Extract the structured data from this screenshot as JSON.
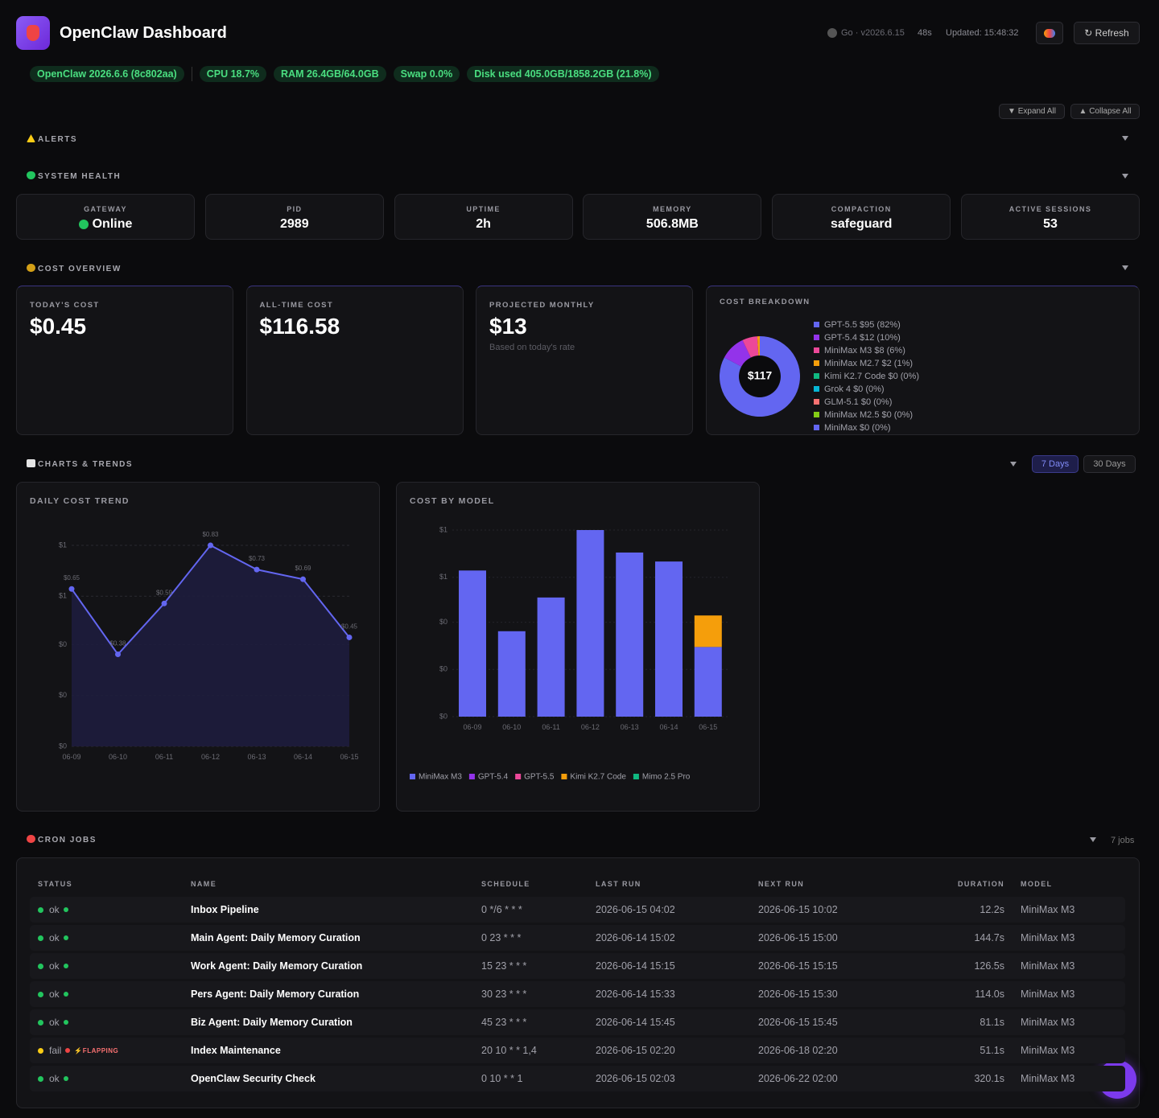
{
  "header": {
    "title": "OpenClaw Dashboard",
    "version": "Go · v2026.6.15",
    "age": "48s",
    "updated": "Updated: 15:48:32",
    "refresh": "↻ Refresh"
  },
  "badges": [
    "OpenClaw 2026.6.6 (8c802aa)",
    "CPU 18.7%",
    "RAM 26.4GB/64.0GB",
    "Swap 0.0%",
    "Disk used 405.0GB/1858.2GB (21.8%)"
  ],
  "controls": {
    "expand": "▼ Expand All",
    "collapse": "▲ Collapse All"
  },
  "alerts": {
    "title": "ALERTS"
  },
  "health": {
    "title": "SYSTEM HEALTH",
    "cards": [
      {
        "label": "GATEWAY",
        "value": "Online"
      },
      {
        "label": "PID",
        "value": "2989"
      },
      {
        "label": "UPTIME",
        "value": "2h"
      },
      {
        "label": "MEMORY",
        "value": "506.8MB"
      },
      {
        "label": "COMPACTION",
        "value": "safeguard"
      },
      {
        "label": "ACTIVE SESSIONS",
        "value": "53"
      }
    ]
  },
  "cost": {
    "title": "COST OVERVIEW",
    "cards": [
      {
        "label": "TODAY'S COST",
        "value": "$0.45"
      },
      {
        "label": "ALL-TIME COST",
        "value": "$116.58"
      },
      {
        "label": "PROJECTED MONTHLY",
        "value": "$13",
        "note": "Based on today's rate"
      }
    ]
  },
  "trends": {
    "title": "CHARTS & TRENDS",
    "tabs": [
      "7 Days",
      "30 Days"
    ]
  },
  "chart_data": [
    {
      "type": "pie",
      "title": "COST BREAKDOWN",
      "center_label": "$117",
      "categories": [
        "GPT-5.5 $95 (82%)",
        "GPT-5.4 $12 (10%)",
        "MiniMax M3 $8 (6%)",
        "MiniMax M2.7 $2 (1%)",
        "Kimi K2.7 Code $0 (0%)",
        "Grok 4 $0 (0%)",
        "GLM-5.1 $0 (0%)",
        "MiniMax M2.5 $0 (0%)",
        "MiniMax $0 (0%)"
      ],
      "values": [
        82,
        10,
        6,
        1,
        0,
        0,
        0,
        0,
        0
      ],
      "colors": [
        "#6366f1",
        "#9333ea",
        "#ec4899",
        "#f59e0b",
        "#10b981",
        "#06b6d4",
        "#f87171",
        "#84cc16",
        "#6366f1"
      ]
    },
    {
      "type": "line",
      "title": "DAILY COST TREND",
      "categories": [
        "06-09",
        "06-10",
        "06-11",
        "06-12",
        "06-13",
        "06-14",
        "06-15"
      ],
      "values": [
        0.65,
        0.38,
        0.59,
        0.83,
        0.73,
        0.69,
        0.45
      ],
      "value_labels": [
        "$0.65",
        "$0.38",
        "$0.59",
        "$0.83",
        "$0.73",
        "$0.69",
        "$0.45"
      ],
      "color": "#6366f1",
      "ylim": [
        0,
        0.83
      ],
      "yticks": [
        {
          "value": 0,
          "label": "$0"
        },
        {
          "value": 0.21,
          "label": "$0"
        },
        {
          "value": 0.42,
          "label": "$0"
        },
        {
          "value": 0.62,
          "label": "$1"
        },
        {
          "value": 0.83,
          "label": "$1"
        }
      ],
      "grid": true
    },
    {
      "type": "bar",
      "stacked": true,
      "title": "COST BY MODEL",
      "categories": [
        "06-09",
        "06-10",
        "06-11",
        "06-12",
        "06-13",
        "06-14",
        "06-15"
      ],
      "series": [
        {
          "name": "MiniMax M3",
          "color": "#6366f1",
          "values": [
            0.65,
            0.38,
            0.53,
            0.83,
            0.73,
            0.69,
            0.31
          ]
        },
        {
          "name": "GPT-5.4",
          "color": "#9333ea",
          "values": [
            0,
            0,
            0,
            0,
            0,
            0,
            0
          ]
        },
        {
          "name": "GPT-5.5",
          "color": "#ec4899",
          "values": [
            0,
            0,
            0,
            0,
            0,
            0,
            0
          ]
        },
        {
          "name": "Kimi K2.7 Code",
          "color": "#f59e0b",
          "values": [
            0,
            0,
            0,
            0,
            0,
            0,
            0.14
          ]
        },
        {
          "name": "Mimo 2.5 Pro",
          "color": "#10b981",
          "values": [
            0,
            0,
            0,
            0,
            0,
            0,
            0
          ]
        }
      ],
      "ylim": [
        0,
        0.83
      ],
      "yticks": [
        {
          "value": 0,
          "label": "$0"
        },
        {
          "value": 0.21,
          "label": "$0"
        },
        {
          "value": 0.42,
          "label": "$0"
        },
        {
          "value": 0.62,
          "label": "$1"
        },
        {
          "value": 0.83,
          "label": "$1"
        }
      ],
      "grid": true
    }
  ],
  "cron": {
    "title": "CRON JOBS",
    "count": "7 jobs",
    "columns": [
      "STATUS",
      "NAME",
      "SCHEDULE",
      "LAST RUN",
      "NEXT RUN",
      "DURATION",
      "MODEL"
    ],
    "rows": [
      {
        "status": "ok",
        "name": "Inbox Pipeline",
        "schedule": "0 */6 * * *",
        "last_run": "2026-06-15 04:02",
        "next_run": "2026-06-15 10:02",
        "duration": "12.2s",
        "model": "MiniMax M3"
      },
      {
        "status": "ok",
        "name": "Main Agent: Daily Memory Curation",
        "schedule": "0 23 * * *",
        "last_run": "2026-06-14 15:02",
        "next_run": "2026-06-15 15:00",
        "duration": "144.7s",
        "model": "MiniMax M3"
      },
      {
        "status": "ok",
        "name": "Work Agent: Daily Memory Curation",
        "schedule": "15 23 * * *",
        "last_run": "2026-06-14 15:15",
        "next_run": "2026-06-15 15:15",
        "duration": "126.5s",
        "model": "MiniMax M3"
      },
      {
        "status": "ok",
        "name": "Pers Agent: Daily Memory Curation",
        "schedule": "30 23 * * *",
        "last_run": "2026-06-14 15:33",
        "next_run": "2026-06-15 15:30",
        "duration": "114.0s",
        "model": "MiniMax M3"
      },
      {
        "status": "ok",
        "name": "Biz Agent: Daily Memory Curation",
        "schedule": "45 23 * * *",
        "last_run": "2026-06-14 15:45",
        "next_run": "2026-06-15 15:45",
        "duration": "81.1s",
        "model": "MiniMax M3"
      },
      {
        "status": "fail",
        "badge": "⚡FLAPPING",
        "name": "Index Maintenance",
        "schedule": "20 10 * * 1,4",
        "last_run": "2026-06-15 02:20",
        "next_run": "2026-06-18 02:20",
        "duration": "51.1s",
        "model": "MiniMax M3"
      },
      {
        "status": "ok",
        "name": "OpenClaw Security Check",
        "schedule": "0 10 * * 1",
        "last_run": "2026-06-15 02:03",
        "next_run": "2026-06-22 02:00",
        "duration": "320.1s",
        "model": "MiniMax M3"
      }
    ]
  }
}
